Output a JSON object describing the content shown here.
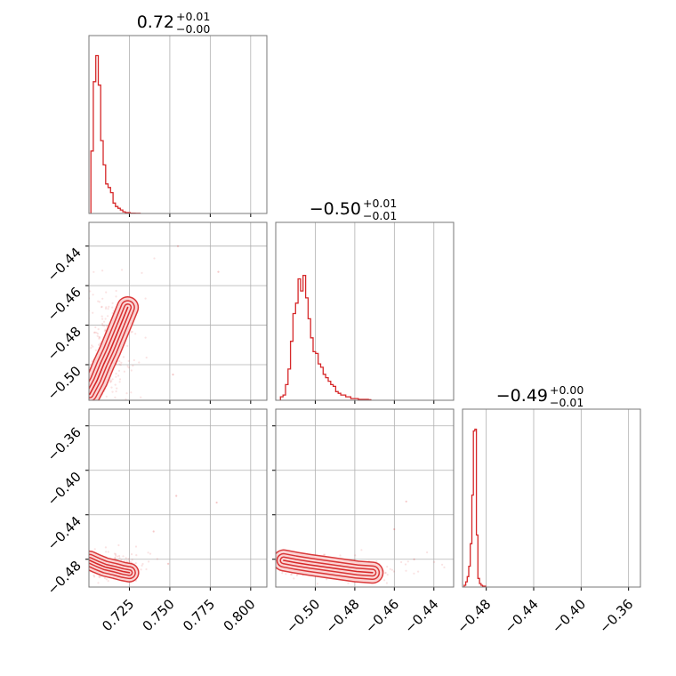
{
  "colors": {
    "accent": "#d62728",
    "grid": "#b0b0b0",
    "frame": "#777777"
  },
  "chart_data": [
    {
      "type": "histogram",
      "panel": "diag-0",
      "title": {
        "value": "0.72",
        "plus": "+0.01",
        "minus": "−0.00"
      },
      "xlim": [
        0.7,
        0.81
      ],
      "x_ticks": [
        "0.725",
        "0.750",
        "0.775",
        "0.800"
      ],
      "bins_start": 0.7012,
      "bin_width": 0.00152,
      "counts": [
        0.36,
        0.76,
        0.91,
        0.74,
        0.42,
        0.28,
        0.17,
        0.15,
        0.12,
        0.06,
        0.04,
        0.03,
        0.02,
        0.01,
        0.005,
        0.005,
        0.002,
        0.002,
        0.001,
        0.001
      ]
    },
    {
      "type": "histogram",
      "panel": "diag-1",
      "title": {
        "value": "−0.50",
        "plus": "+0.01",
        "minus": "−0.01"
      },
      "xlim": [
        -0.52,
        -0.43
      ],
      "x_ticks": [
        "−0.50",
        "−0.48",
        "−0.46",
        "−0.44"
      ],
      "bins_start": -0.5176,
      "bin_width": 0.00127,
      "counts": [
        0.02,
        0.03,
        0.09,
        0.18,
        0.34,
        0.5,
        0.56,
        0.7,
        0.63,
        0.72,
        0.59,
        0.47,
        0.36,
        0.28,
        0.27,
        0.21,
        0.19,
        0.15,
        0.13,
        0.11,
        0.09,
        0.08,
        0.05,
        0.04,
        0.03,
        0.03,
        0.02,
        0.02,
        0.01,
        0.01,
        0.01,
        0.005,
        0.005,
        0.005,
        0.005,
        0.003
      ]
    },
    {
      "type": "histogram",
      "panel": "diag-2",
      "title": {
        "value": "−0.49",
        "plus": "+0.00",
        "minus": "−0.01"
      },
      "xlim": [
        -0.5,
        -0.35
      ],
      "x_ticks": [
        "−0.48",
        "−0.44",
        "−0.40",
        "−0.36"
      ],
      "bins_start": -0.4986,
      "bin_width": 0.00129,
      "counts": [
        0.01,
        0.03,
        0.06,
        0.12,
        0.25,
        0.53,
        0.9,
        0.91,
        0.3,
        0.05,
        0.02,
        0.01,
        0.005,
        0.005
      ]
    },
    {
      "type": "scatter-contour",
      "panel": "row1-col0",
      "xlim": [
        0.7,
        0.81
      ],
      "ylim": [
        -0.518,
        -0.428
      ],
      "x_ticks": [],
      "y_ticks": [
        "−0.44",
        "−0.46",
        "−0.48",
        "−0.50"
      ],
      "x_tick_values": [
        0.725,
        0.75,
        0.775,
        0.8
      ],
      "y_tick_values": [
        -0.44,
        -0.46,
        -0.48,
        -0.5
      ],
      "ridge": [
        [
          0.7005,
          -0.515
        ],
        [
          0.705,
          -0.508
        ],
        [
          0.709,
          -0.5
        ],
        [
          0.713,
          -0.493
        ],
        [
          0.717,
          -0.485
        ],
        [
          0.721,
          -0.477
        ],
        [
          0.724,
          -0.471
        ]
      ],
      "contour_widths": [
        0.0015,
        0.0032,
        0.0052
      ],
      "scatter_center": [
        0.711,
        -0.495
      ],
      "scatter_spread": [
        0.009,
        0.02
      ],
      "outliers": [
        [
          0.78,
          -0.453
        ],
        [
          0.755,
          -0.44
        ],
        [
          0.752,
          -0.505
        ]
      ]
    },
    {
      "type": "scatter-contour",
      "panel": "row2-col0",
      "xlim": [
        0.7,
        0.81
      ],
      "ylim": [
        -0.505,
        -0.345
      ],
      "x_ticks": [
        "0.725",
        "0.750",
        "0.775",
        "0.800"
      ],
      "y_ticks": [
        "−0.36",
        "−0.40",
        "−0.44",
        "−0.48"
      ],
      "x_tick_values": [
        0.725,
        0.75,
        0.775,
        0.8
      ],
      "y_tick_values": [
        -0.36,
        -0.4,
        -0.44,
        -0.48
      ],
      "ridge": [
        [
          0.7005,
          -0.481
        ],
        [
          0.705,
          -0.484
        ],
        [
          0.71,
          -0.487
        ],
        [
          0.716,
          -0.489
        ],
        [
          0.721,
          -0.491
        ],
        [
          0.725,
          -0.492
        ]
      ],
      "contour_widths": [
        0.0012,
        0.0028,
        0.0045
      ],
      "scatter_center": [
        0.714,
        -0.487
      ],
      "scatter_spread": [
        0.01,
        0.006
      ],
      "outliers": [
        [
          0.779,
          -0.429
        ],
        [
          0.754,
          -0.423
        ],
        [
          0.74,
          -0.455
        ],
        [
          0.749,
          -0.484
        ]
      ]
    },
    {
      "type": "scatter-contour",
      "panel": "row2-col1",
      "xlim": [
        -0.52,
        -0.43
      ],
      "ylim": [
        -0.505,
        -0.345
      ],
      "x_ticks": [
        "−0.50",
        "−0.48",
        "−0.46",
        "−0.44"
      ],
      "y_ticks": [],
      "x_tick_values": [
        -0.5,
        -0.48,
        -0.46,
        -0.44
      ],
      "y_tick_values": [
        -0.36,
        -0.4,
        -0.44,
        -0.48
      ],
      "ridge": [
        [
          -0.516,
          -0.481
        ],
        [
          -0.51,
          -0.483
        ],
        [
          -0.503,
          -0.485
        ],
        [
          -0.495,
          -0.487
        ],
        [
          -0.487,
          -0.489
        ],
        [
          -0.479,
          -0.491
        ],
        [
          -0.471,
          -0.492
        ]
      ],
      "contour_widths": [
        0.0012,
        0.0026,
        0.0042
      ],
      "scatter_center": [
        -0.492,
        -0.488
      ],
      "scatter_spread": [
        0.015,
        0.005
      ],
      "outliers": [
        [
          -0.454,
          -0.428
        ],
        [
          -0.46,
          -0.453
        ],
        [
          -0.45,
          -0.48
        ]
      ]
    }
  ]
}
